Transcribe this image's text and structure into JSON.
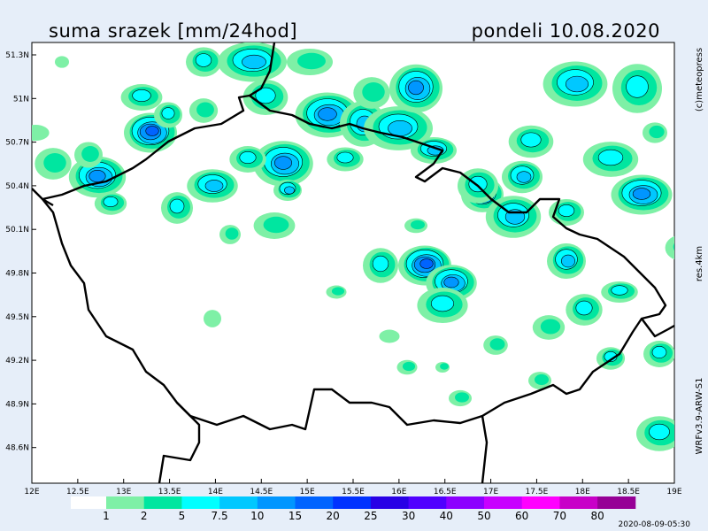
{
  "header": {
    "title": "suma srazek [mm/24hod]",
    "date": "pondeli 10.08.2020"
  },
  "map": {
    "lat_ticks": [
      "51.3N",
      "51N",
      "50.7N",
      "50.4N",
      "50.1N",
      "49.8N",
      "49.5N",
      "49.2N",
      "48.9N",
      "48.6N"
    ],
    "lon_ticks": [
      "12E",
      "12.5E",
      "13E",
      "13.5E",
      "14E",
      "14.5E",
      "15E",
      "15.5E",
      "16E",
      "16.5E",
      "17E",
      "17.5E",
      "18E",
      "18.5E",
      "19E"
    ]
  },
  "legend": {
    "labels": [
      "1",
      "2",
      "5",
      "7.5",
      "10",
      "15",
      "20",
      "25",
      "30",
      "40",
      "50",
      "60",
      "70",
      "80"
    ]
  },
  "side": {
    "credit": "(c)meteopress",
    "resolution": "res.4km",
    "model": "WRFv3.9-ARW-S1"
  },
  "footer": {
    "timestamp": "2020-08-09-05:30"
  }
}
